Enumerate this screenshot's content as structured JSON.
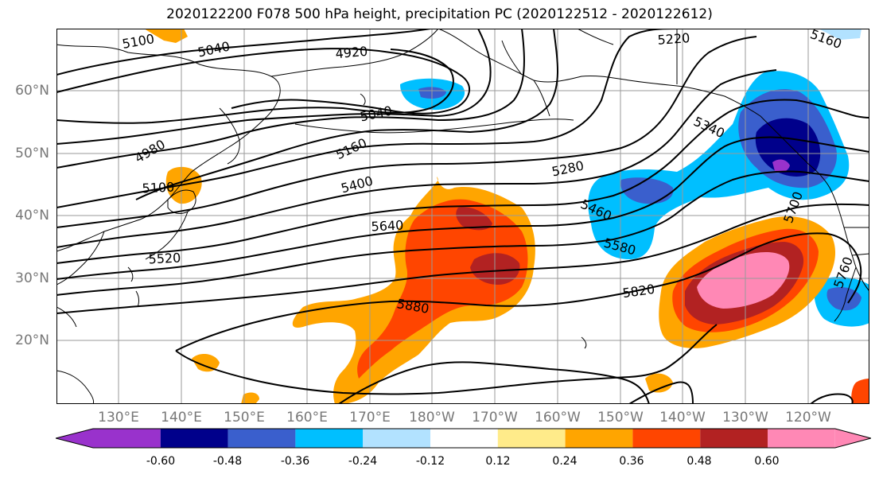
{
  "title": "2020122200 F078 500 hPa height, precipitation PC (2020122512 - 2020122612)",
  "lat_labels": [
    "60°N",
    "50°N",
    "40°N",
    "30°N",
    "20°N"
  ],
  "lon_labels": [
    "130°E",
    "140°E",
    "150°E",
    "160°E",
    "170°E",
    "180°W",
    "170°W",
    "160°W",
    "150°W",
    "140°W",
    "130°W",
    "120°W"
  ],
  "contour_labels": [
    "5100",
    "5040",
    "4920",
    "5220",
    "5160",
    "5040",
    "4980",
    "5160",
    "5100",
    "5400",
    "5340",
    "5280",
    "5460",
    "5640",
    "5580",
    "5520",
    "5700",
    "5820",
    "5880",
    "5760"
  ],
  "colorbar": {
    "colors": [
      "#9932cc",
      "#00008b",
      "#3a5fcd",
      "#00bfff",
      "#b2e2ff",
      "#ffffff",
      "#ffeb8a",
      "#ffa500",
      "#ff4500",
      "#b22222",
      "#ff88b5"
    ],
    "ticks": [
      "-0.60",
      "-0.48",
      "-0.36",
      "-0.24",
      "-0.12",
      "0.12",
      "0.24",
      "0.36",
      "0.48",
      "0.60"
    ]
  }
}
